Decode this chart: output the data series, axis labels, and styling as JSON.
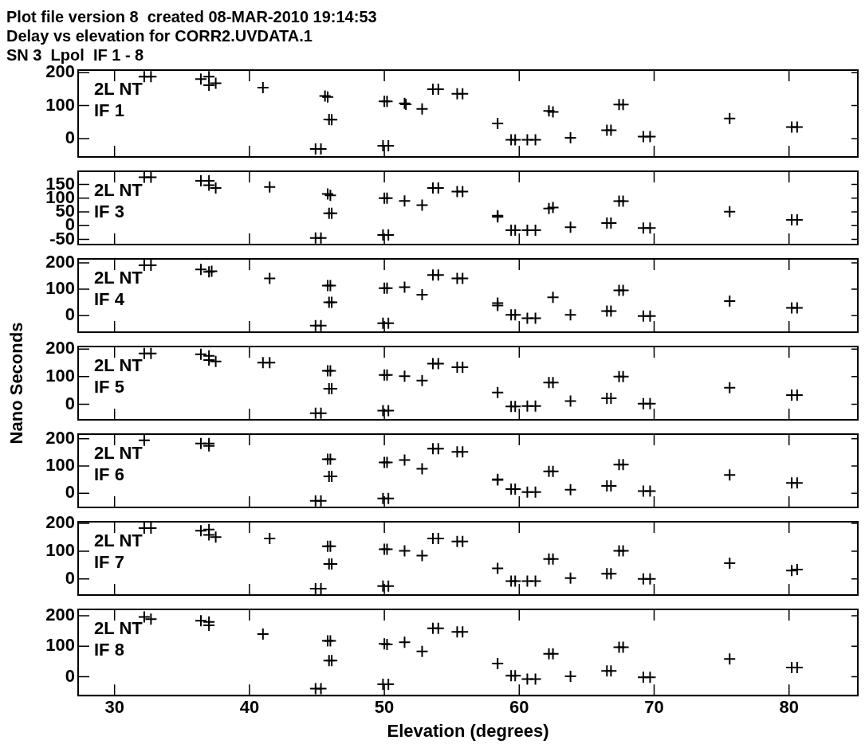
{
  "chart_data": [
    {
      "type": "scatter",
      "title": "Plot file version 8  created 08-MAR-2010 19:14:53\nDelay vs elevation for CORR2.UVDATA.1\nSN 3  Lpol  IF 1 - 8",
      "annotations": [
        "2L NT",
        "IF 1"
      ],
      "color": "#000000",
      "marker": "cross",
      "tick_labels": "y",
      "xlim": [
        27.3,
        85.1
      ],
      "xticks": [
        30,
        40,
        50,
        60,
        70,
        80
      ],
      "ylim": [
        -56,
        208
      ],
      "yticks": [
        0,
        100,
        200
      ],
      "x": [
        32.2,
        32.7,
        36.4,
        37.0,
        37.0,
        37.5,
        41.0,
        45.6,
        45.8,
        45.9,
        46.1,
        44.9,
        45.3,
        50.0,
        50.2,
        49.9,
        50.3,
        51.5,
        51.6,
        52.8,
        53.6,
        54.0,
        55.4,
        55.8,
        58.4,
        59.4,
        59.7,
        60.6,
        61.2,
        62.2,
        62.5,
        63.8,
        66.5,
        66.8,
        67.4,
        67.7,
        69.2,
        69.7,
        75.6,
        80.2,
        80.6
      ],
      "values": [
        188,
        188,
        181,
        188,
        162,
        168,
        155,
        129,
        126,
        58,
        57,
        -32,
        -32,
        113,
        113,
        -22,
        -22,
        107,
        104,
        90,
        150,
        150,
        136,
        136,
        46,
        -4,
        -4,
        -4,
        -4,
        84,
        81,
        2,
        25,
        25,
        103,
        103,
        6,
        6,
        61,
        35,
        35
      ]
    },
    {
      "type": "scatter",
      "annotations": [
        "2L NT",
        "IF 3"
      ],
      "color": "#000000",
      "marker": "cross",
      "tick_labels": "y",
      "xlim": [
        27.3,
        85.1
      ],
      "xticks": [
        30,
        40,
        50,
        60,
        70,
        80
      ],
      "ylim": [
        -69,
        198
      ],
      "yticks": [
        -50,
        0,
        50,
        100,
        150
      ],
      "x": [
        32.2,
        32.7,
        36.4,
        37.0,
        37.0,
        37.5,
        41.5,
        45.8,
        46.0,
        45.9,
        46.1,
        44.9,
        45.3,
        50.0,
        50.2,
        49.9,
        50.3,
        51.5,
        52.8,
        53.6,
        54.0,
        55.4,
        55.8,
        58.4,
        58.4,
        59.4,
        59.7,
        60.6,
        61.2,
        62.2,
        62.5,
        63.8,
        66.5,
        66.8,
        67.4,
        67.7,
        69.2,
        69.7,
        75.6,
        80.2,
        80.6
      ],
      "values": [
        176,
        176,
        163,
        163,
        147,
        137,
        141,
        115,
        110,
        45,
        45,
        -45,
        -45,
        100,
        100,
        -34,
        -34,
        90,
        75,
        137,
        137,
        124,
        124,
        32,
        36,
        -17,
        -17,
        -17,
        -17,
        62,
        66,
        -6,
        9,
        9,
        89,
        89,
        -9,
        -9,
        51,
        21,
        21
      ]
    },
    {
      "type": "scatter",
      "annotations": [
        "2L NT",
        "IF 4"
      ],
      "color": "#000000",
      "marker": "cross",
      "tick_labels": "y",
      "xlim": [
        27.3,
        85.1
      ],
      "xticks": [
        30,
        40,
        50,
        60,
        70,
        80
      ],
      "ylim": [
        -63,
        215
      ],
      "yticks": [
        0,
        100,
        200
      ],
      "x": [
        32.2,
        32.7,
        36.4,
        37.0,
        37.2,
        41.5,
        45.8,
        46.0,
        45.9,
        46.1,
        44.9,
        45.3,
        50.0,
        50.2,
        49.9,
        50.3,
        51.5,
        52.8,
        53.6,
        54.0,
        55.4,
        55.8,
        58.4,
        58.4,
        59.4,
        59.7,
        60.6,
        61.2,
        62.5,
        63.8,
        66.5,
        66.8,
        67.4,
        67.7,
        69.2,
        69.7,
        75.6,
        80.2,
        80.6
      ],
      "values": [
        191,
        191,
        175,
        166,
        168,
        141,
        114,
        114,
        50,
        50,
        -38,
        -38,
        104,
        104,
        -29,
        -29,
        108,
        79,
        154,
        154,
        141,
        141,
        47,
        38,
        3,
        3,
        -10,
        -10,
        69,
        3,
        17,
        17,
        96,
        96,
        -2,
        -2,
        55,
        29,
        29
      ]
    },
    {
      "type": "scatter",
      "annotations": [
        "2L NT",
        "IF 5"
      ],
      "ylabel": "Nano Seconds",
      "color": "#000000",
      "marker": "cross",
      "tick_labels": "y",
      "xlim": [
        27.3,
        85.1
      ],
      "xticks": [
        30,
        40,
        50,
        60,
        70,
        80
      ],
      "ylim": [
        -56,
        209
      ],
      "yticks": [
        0,
        100,
        200
      ],
      "x": [
        32.2,
        32.7,
        36.4,
        37.0,
        37.0,
        37.5,
        41.0,
        41.5,
        45.8,
        46.0,
        45.9,
        46.1,
        44.9,
        45.3,
        50.0,
        50.2,
        49.9,
        50.3,
        51.5,
        52.8,
        53.6,
        54.0,
        55.4,
        55.8,
        58.4,
        59.4,
        59.7,
        60.6,
        61.2,
        62.2,
        62.5,
        63.8,
        66.5,
        66.8,
        67.4,
        67.7,
        69.2,
        69.7,
        75.6,
        80.2,
        80.6
      ],
      "values": [
        184,
        184,
        181,
        175,
        160,
        155,
        151,
        151,
        121,
        121,
        56,
        56,
        -32,
        -32,
        106,
        106,
        -23,
        -23,
        102,
        86,
        147,
        147,
        134,
        134,
        43,
        -8,
        -8,
        -6,
        -6,
        79,
        79,
        12,
        22,
        22,
        100,
        100,
        2,
        2,
        60,
        33,
        33
      ]
    },
    {
      "type": "scatter",
      "annotations": [
        "2L NT",
        "IF 6"
      ],
      "color": "#000000",
      "marker": "cross",
      "tick_labels": "y",
      "xlim": [
        27.3,
        85.1
      ],
      "xticks": [
        30,
        40,
        50,
        60,
        70,
        80
      ],
      "ylim": [
        -52,
        217
      ],
      "yticks": [
        0,
        100,
        200
      ],
      "x": [
        32.2,
        36.4,
        37.0,
        37.0,
        45.8,
        46.0,
        45.9,
        46.1,
        44.9,
        45.3,
        50.0,
        50.2,
        49.9,
        50.3,
        51.5,
        52.8,
        53.6,
        54.0,
        55.4,
        55.8,
        58.4,
        58.4,
        59.4,
        59.7,
        60.6,
        61.2,
        62.2,
        62.5,
        63.8,
        66.5,
        66.8,
        67.4,
        67.7,
        69.2,
        69.7,
        75.6,
        80.2,
        80.6
      ],
      "values": [
        194,
        183,
        183,
        174,
        125,
        125,
        62,
        62,
        -28,
        -28,
        113,
        113,
        -19,
        -19,
        122,
        90,
        164,
        164,
        152,
        152,
        51,
        49,
        15,
        15,
        4,
        4,
        80,
        80,
        13,
        27,
        27,
        105,
        105,
        8,
        8,
        67,
        38,
        38
      ]
    },
    {
      "type": "scatter",
      "annotations": [
        "2L NT",
        "IF 7"
      ],
      "color": "#000000",
      "marker": "cross",
      "tick_labels": "y",
      "xlim": [
        27.3,
        85.1
      ],
      "xticks": [
        30,
        40,
        50,
        60,
        70,
        80
      ],
      "ylim": [
        -58,
        206
      ],
      "yticks": [
        0,
        100,
        200
      ],
      "x": [
        32.2,
        32.7,
        36.4,
        37.0,
        37.0,
        37.5,
        41.5,
        45.8,
        46.0,
        45.9,
        46.1,
        44.9,
        45.3,
        50.0,
        50.2,
        49.9,
        50.3,
        51.5,
        52.8,
        53.6,
        54.0,
        55.4,
        55.8,
        58.4,
        59.4,
        59.7,
        60.6,
        61.2,
        62.2,
        62.5,
        63.8,
        66.5,
        66.8,
        67.4,
        67.7,
        69.2,
        69.7,
        75.6,
        80.2,
        80.6
      ],
      "values": [
        183,
        183,
        174,
        178,
        159,
        151,
        146,
        118,
        118,
        54,
        54,
        -35,
        -35,
        107,
        107,
        -26,
        -26,
        101,
        84,
        146,
        146,
        135,
        135,
        38,
        -8,
        -8,
        -8,
        -8,
        72,
        72,
        3,
        19,
        19,
        101,
        101,
        0,
        0,
        57,
        30,
        34
      ]
    },
    {
      "type": "scatter",
      "annotations": [
        "2L NT",
        "IF 8"
      ],
      "xlabel": "Elevation (degrees)",
      "color": "#000000",
      "marker": "cross",
      "xlim": [
        27.3,
        85.1
      ],
      "xticks": [
        30,
        40,
        50,
        60,
        70,
        80
      ],
      "ylim": [
        -62,
        221
      ],
      "yticks": [
        0,
        100,
        200
      ],
      "x": [
        32.2,
        32.7,
        36.4,
        37.0,
        37.0,
        41.0,
        45.8,
        46.0,
        45.9,
        46.1,
        44.9,
        45.3,
        50.0,
        50.2,
        49.9,
        50.3,
        51.5,
        52.8,
        53.6,
        54.0,
        55.4,
        55.8,
        58.4,
        59.4,
        59.7,
        60.6,
        61.2,
        62.2,
        62.5,
        63.8,
        66.5,
        66.8,
        67.4,
        67.7,
        69.2,
        69.7,
        75.6,
        80.2,
        80.6
      ],
      "values": [
        196,
        189,
        184,
        180,
        169,
        140,
        118,
        118,
        53,
        53,
        -39,
        -39,
        108,
        106,
        -25,
        -25,
        113,
        83,
        159,
        159,
        147,
        147,
        43,
        3,
        3,
        -8,
        -8,
        75,
        75,
        1,
        19,
        19,
        97,
        97,
        -2,
        -2,
        58,
        30,
        30
      ]
    }
  ]
}
